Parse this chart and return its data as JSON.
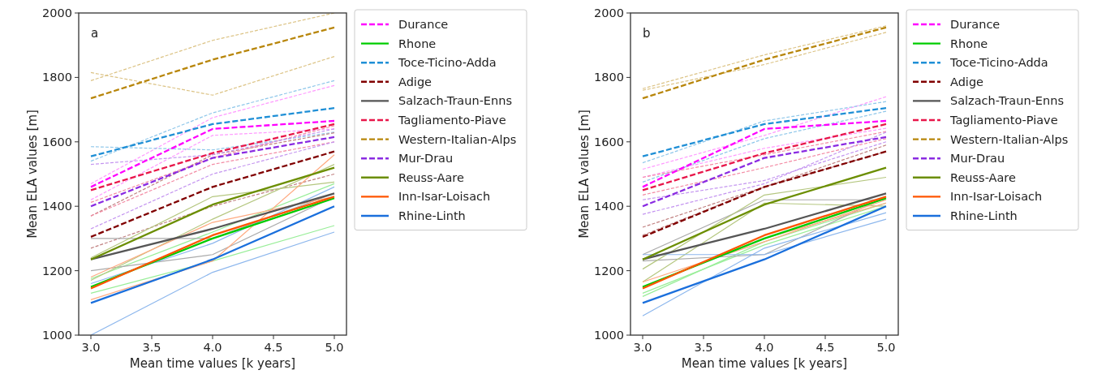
{
  "chart_data": [
    {
      "type": "line",
      "annotations": [
        "a"
      ],
      "xlabel": "Mean time values [k years]",
      "ylabel": "Mean ELA values [m]",
      "legend": "right",
      "x": [
        3,
        4,
        5
      ],
      "xlim": [
        2.9,
        5.1
      ],
      "xticks": [
        {
          "value": 3,
          "label": "3.0"
        },
        {
          "value": 3.5,
          "label": "3.5"
        },
        {
          "value": 4,
          "label": "4.0"
        },
        {
          "value": 4.5,
          "label": "4.5"
        },
        {
          "value": 5,
          "label": "5.0"
        }
      ],
      "ylim": [
        1000,
        2000
      ],
      "yticks": [
        1000,
        1200,
        1400,
        1600,
        1800,
        2000
      ],
      "series": [
        {
          "color": "#ff99ff",
          "line_style": "dashed",
          "values": [
            1470,
            1675,
            1775
          ]
        },
        {
          "color": "#ff99ff",
          "line_style": "dashed",
          "values": [
            1420,
            1620,
            1640
          ]
        },
        {
          "color": "#99ee99",
          "line_style": "solid",
          "values": [
            1130,
            1230,
            1340
          ]
        },
        {
          "color": "#99ee99",
          "line_style": "solid",
          "values": [
            1175,
            1320,
            1470
          ]
        },
        {
          "color": "#8fc7ea",
          "line_style": "dashed",
          "values": [
            1540,
            1690,
            1790
          ]
        },
        {
          "color": "#8fc7ea",
          "line_style": "dashed",
          "values": [
            1585,
            1575,
            1630
          ]
        },
        {
          "color": "#c08080",
          "line_style": "dashed",
          "values": [
            1370,
            1560,
            1628
          ]
        },
        {
          "color": "#c08080",
          "line_style": "dashed",
          "values": [
            1270,
            1400,
            1500
          ]
        },
        {
          "color": "#aaaaaa",
          "line_style": "solid",
          "values": [
            1300,
            1300,
            1440
          ]
        },
        {
          "color": "#aaaaaa",
          "line_style": "solid",
          "values": [
            1200,
            1250,
            1430
          ]
        },
        {
          "color": "#f38ba4",
          "line_style": "dashed",
          "values": [
            1412,
            1550,
            1650
          ]
        },
        {
          "color": "#f38ba4",
          "line_style": "dashed",
          "values": [
            1370,
            1530,
            1600
          ]
        },
        {
          "color": "#dcc385",
          "line_style": "dashed",
          "values": [
            1815,
            1745,
            1865
          ]
        },
        {
          "color": "#dcc385",
          "line_style": "dashed",
          "values": [
            1790,
            1915,
            2000
          ]
        },
        {
          "color": "#c495f0",
          "line_style": "dashed",
          "values": [
            1530,
            1560,
            1640
          ]
        },
        {
          "color": "#c495f0",
          "line_style": "dashed",
          "values": [
            1330,
            1500,
            1600
          ]
        },
        {
          "color": "#b5c780",
          "line_style": "solid",
          "values": [
            1240,
            1430,
            1475
          ]
        },
        {
          "color": "#b5c780",
          "line_style": "solid",
          "values": [
            1170,
            1360,
            1530
          ]
        },
        {
          "color": "#ffaa80",
          "line_style": "solid",
          "values": [
            1110,
            1230,
            1560
          ]
        },
        {
          "color": "#ffaa80",
          "line_style": "solid",
          "values": [
            1180,
            1350,
            1430
          ]
        },
        {
          "color": "#8db7ed",
          "line_style": "solid",
          "values": [
            1000,
            1195,
            1320
          ]
        },
        {
          "color": "#8db7ed",
          "line_style": "solid",
          "values": [
            1160,
            1285,
            1460
          ]
        },
        {
          "name": "Durance",
          "color": "#ff00ff",
          "line_style": "dashed",
          "values": [
            1460,
            1640,
            1665
          ]
        },
        {
          "name": "Rhone",
          "color": "#00cc00",
          "line_style": "solid",
          "values": [
            1150,
            1300,
            1425
          ]
        },
        {
          "name": "Toce-Ticino-Adda",
          "color": "#1f8fd6",
          "line_style": "dashed",
          "values": [
            1555,
            1655,
            1705
          ]
        },
        {
          "name": "Adige",
          "color": "#800000",
          "line_style": "dashed",
          "values": [
            1305,
            1460,
            1570
          ]
        },
        {
          "name": "Salzach-Traun-Enns",
          "color": "#555555",
          "line_style": "solid",
          "values": [
            1235,
            1330,
            1440
          ]
        },
        {
          "name": "Tagliamento-Piave",
          "color": "#e8174a",
          "line_style": "dashed",
          "values": [
            1450,
            1565,
            1655
          ]
        },
        {
          "name": "Western-Italian-Alps",
          "color": "#b8860b",
          "line_style": "dashed",
          "values": [
            1735,
            1855,
            1955
          ]
        },
        {
          "name": "Mur-Drau",
          "color": "#8a2be2",
          "line_style": "dashed",
          "values": [
            1400,
            1550,
            1615
          ]
        },
        {
          "name": "Reuss-Aare",
          "color": "#6b8e00",
          "line_style": "solid",
          "values": [
            1235,
            1405,
            1520
          ]
        },
        {
          "name": "Inn-Isar-Loisach",
          "color": "#ff5500",
          "line_style": "solid",
          "values": [
            1145,
            1310,
            1430
          ]
        },
        {
          "name": "Rhine-Linth",
          "color": "#1a6fdc",
          "line_style": "solid",
          "values": [
            1100,
            1235,
            1400
          ]
        }
      ]
    },
    {
      "type": "line",
      "annotations": [
        "b"
      ],
      "xlabel": "Mean time values [k years]",
      "ylabel": "Mean ELA values [m]",
      "legend": "right",
      "x": [
        3,
        4,
        5
      ],
      "xlim": [
        2.9,
        5.1
      ],
      "xticks": [
        {
          "value": 3,
          "label": "3.0"
        },
        {
          "value": 3.5,
          "label": "3.5"
        },
        {
          "value": 4,
          "label": "4.0"
        },
        {
          "value": 4.5,
          "label": "4.5"
        },
        {
          "value": 5,
          "label": "5.0"
        }
      ],
      "ylim": [
        1000,
        2000
      ],
      "yticks": [
        1000,
        1200,
        1400,
        1600,
        1800,
        2000
      ],
      "series": [
        {
          "color": "#ff99ff",
          "line_style": "dashed",
          "values": [
            1515,
            1620,
            1740
          ]
        },
        {
          "color": "#ff99ff",
          "line_style": "dashed",
          "values": [
            1490,
            1580,
            1642
          ]
        },
        {
          "color": "#99ee99",
          "line_style": "solid",
          "values": [
            1130,
            1280,
            1400
          ]
        },
        {
          "color": "#99ee99",
          "line_style": "solid",
          "values": [
            1120,
            1290,
            1410
          ]
        },
        {
          "color": "#8fc7ea",
          "line_style": "dashed",
          "values": [
            1535,
            1665,
            1725
          ]
        },
        {
          "color": "#8fc7ea",
          "line_style": "dashed",
          "values": [
            1475,
            1610,
            1695
          ]
        },
        {
          "color": "#c08080",
          "line_style": "dashed",
          "values": [
            1335,
            1460,
            1590
          ]
        },
        {
          "color": "#c08080",
          "line_style": "dashed",
          "values": [
            1310,
            1460,
            1570
          ]
        },
        {
          "color": "#aaaaaa",
          "line_style": "solid",
          "values": [
            1250,
            1420,
            1420
          ]
        },
        {
          "color": "#aaaaaa",
          "line_style": "solid",
          "values": [
            1230,
            1250,
            1430
          ]
        },
        {
          "color": "#f38ba4",
          "line_style": "dashed",
          "values": [
            1490,
            1560,
            1632
          ]
        },
        {
          "color": "#f38ba4",
          "line_style": "dashed",
          "values": [
            1435,
            1520,
            1610
          ]
        },
        {
          "color": "#dcc385",
          "line_style": "dashed",
          "values": [
            1765,
            1870,
            1960
          ]
        },
        {
          "color": "#dcc385",
          "line_style": "dashed",
          "values": [
            1760,
            1840,
            1940
          ]
        },
        {
          "color": "#c495f0",
          "line_style": "dashed",
          "values": [
            1375,
            1470,
            1630
          ]
        },
        {
          "color": "#c495f0",
          "line_style": "dashed",
          "values": [
            1420,
            1480,
            1600
          ]
        },
        {
          "color": "#b5c780",
          "line_style": "solid",
          "values": [
            1205,
            1435,
            1490
          ]
        },
        {
          "color": "#b5c780",
          "line_style": "solid",
          "values": [
            1165,
            1410,
            1400
          ]
        },
        {
          "color": "#ffaa80",
          "line_style": "solid",
          "values": [
            1165,
            1290,
            1420
          ]
        },
        {
          "color": "#ffaa80",
          "line_style": "solid",
          "values": [
            1150,
            1300,
            1410
          ]
        },
        {
          "color": "#8db7ed",
          "line_style": "solid",
          "values": [
            1060,
            1270,
            1380
          ]
        },
        {
          "color": "#8db7ed",
          "line_style": "solid",
          "values": [
            1250,
            1250,
            1360
          ]
        },
        {
          "name": "Durance",
          "color": "#ff00ff",
          "line_style": "dashed",
          "values": [
            1460,
            1640,
            1665
          ]
        },
        {
          "name": "Rhone",
          "color": "#00cc00",
          "line_style": "solid",
          "values": [
            1150,
            1300,
            1425
          ]
        },
        {
          "name": "Toce-Ticino-Adda",
          "color": "#1f8fd6",
          "line_style": "dashed",
          "values": [
            1555,
            1655,
            1705
          ]
        },
        {
          "name": "Adige",
          "color": "#800000",
          "line_style": "dashed",
          "values": [
            1305,
            1460,
            1570
          ]
        },
        {
          "name": "Salzach-Traun-Enns",
          "color": "#555555",
          "line_style": "solid",
          "values": [
            1235,
            1330,
            1440
          ]
        },
        {
          "name": "Tagliamento-Piave",
          "color": "#e8174a",
          "line_style": "dashed",
          "values": [
            1450,
            1565,
            1655
          ]
        },
        {
          "name": "Western-Italian-Alps",
          "color": "#b8860b",
          "line_style": "dashed",
          "values": [
            1735,
            1855,
            1955
          ]
        },
        {
          "name": "Mur-Drau",
          "color": "#8a2be2",
          "line_style": "dashed",
          "values": [
            1400,
            1550,
            1615
          ]
        },
        {
          "name": "Reuss-Aare",
          "color": "#6b8e00",
          "line_style": "solid",
          "values": [
            1235,
            1405,
            1520
          ]
        },
        {
          "name": "Inn-Isar-Loisach",
          "color": "#ff5500",
          "line_style": "solid",
          "values": [
            1145,
            1310,
            1430
          ]
        },
        {
          "name": "Rhine-Linth",
          "color": "#1a6fdc",
          "line_style": "solid",
          "values": [
            1100,
            1235,
            1400
          ]
        }
      ]
    }
  ]
}
